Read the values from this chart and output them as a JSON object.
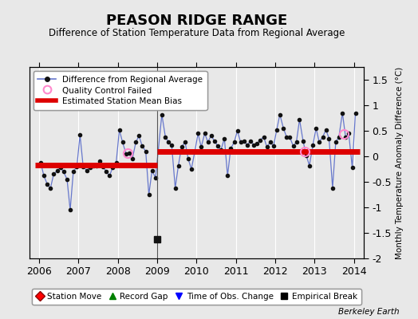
{
  "title": "PEASON RIDGE RANGE",
  "subtitle": "Difference of Station Temperature Data from Regional Average",
  "ylabel_right": "Monthly Temperature Anomaly Difference (°C)",
  "credit": "Berkeley Earth",
  "xlim": [
    2005.75,
    2014.25
  ],
  "ylim": [
    -2.0,
    1.75
  ],
  "yticks": [
    -2.0,
    -1.5,
    -1.0,
    -0.5,
    0.0,
    0.5,
    1.0,
    1.5
  ],
  "xticks": [
    2006,
    2007,
    2008,
    2009,
    2010,
    2011,
    2012,
    2013,
    2014
  ],
  "background_color": "#e8e8e8",
  "plot_bg_color": "#e8e8e8",
  "grid_color": "#ffffff",
  "line_color": "#6677cc",
  "marker_color": "#111111",
  "bias_color": "#dd0000",
  "qc_color": "#ff88cc",
  "break_marker_y": -1.62,
  "break_marker_x": 2009.0,
  "segment1_x_start": 2005.9,
  "segment1_x_end": 2009.0,
  "segment1_bias": -0.165,
  "segment2_x_start": 2009.0,
  "segment2_x_end": 2014.15,
  "segment2_bias": 0.09,
  "qc_points": [
    [
      2008.25,
      0.07
    ],
    [
      2012.75,
      0.09
    ],
    [
      2013.75,
      0.44
    ]
  ],
  "vline_x": 2009.0,
  "data_x": [
    2006.04,
    2006.12,
    2006.21,
    2006.29,
    2006.37,
    2006.46,
    2006.54,
    2006.62,
    2006.71,
    2006.79,
    2006.87,
    2006.96,
    2007.04,
    2007.12,
    2007.21,
    2007.29,
    2007.37,
    2007.46,
    2007.54,
    2007.62,
    2007.71,
    2007.79,
    2007.87,
    2007.96,
    2008.04,
    2008.12,
    2008.21,
    2008.29,
    2008.37,
    2008.46,
    2008.54,
    2008.62,
    2008.71,
    2008.79,
    2008.87,
    2008.96,
    2009.12,
    2009.21,
    2009.29,
    2009.37,
    2009.46,
    2009.54,
    2009.62,
    2009.71,
    2009.79,
    2009.87,
    2009.96,
    2010.04,
    2010.12,
    2010.21,
    2010.29,
    2010.37,
    2010.46,
    2010.54,
    2010.62,
    2010.71,
    2010.79,
    2010.87,
    2010.96,
    2011.04,
    2011.12,
    2011.21,
    2011.29,
    2011.37,
    2011.46,
    2011.54,
    2011.62,
    2011.71,
    2011.79,
    2011.87,
    2011.96,
    2012.04,
    2012.12,
    2012.21,
    2012.29,
    2012.37,
    2012.46,
    2012.54,
    2012.62,
    2012.71,
    2012.79,
    2012.87,
    2012.96,
    2013.04,
    2013.12,
    2013.21,
    2013.29,
    2013.37,
    2013.46,
    2013.54,
    2013.62,
    2013.71,
    2013.79,
    2013.87,
    2013.96,
    2014.04
  ],
  "data_y": [
    -0.12,
    -0.38,
    -0.55,
    -0.62,
    -0.35,
    -0.28,
    -0.22,
    -0.3,
    -0.45,
    -1.05,
    -0.3,
    -0.2,
    0.42,
    -0.2,
    -0.28,
    -0.22,
    -0.18,
    -0.18,
    -0.1,
    -0.2,
    -0.3,
    -0.38,
    -0.22,
    -0.12,
    0.52,
    0.28,
    0.05,
    0.07,
    -0.05,
    0.28,
    0.4,
    0.2,
    0.1,
    -0.75,
    -0.28,
    -0.42,
    0.82,
    0.38,
    0.28,
    0.22,
    -0.62,
    -0.18,
    0.18,
    0.28,
    -0.05,
    -0.25,
    0.1,
    0.45,
    0.18,
    0.45,
    0.28,
    0.4,
    0.3,
    0.2,
    0.12,
    0.35,
    -0.38,
    0.15,
    0.28,
    0.5,
    0.28,
    0.3,
    0.22,
    0.3,
    0.22,
    0.25,
    0.32,
    0.38,
    0.18,
    0.28,
    0.2,
    0.52,
    0.82,
    0.55,
    0.38,
    0.38,
    0.2,
    0.28,
    0.72,
    0.3,
    0.02,
    -0.18,
    0.22,
    0.55,
    0.28,
    0.38,
    0.52,
    0.35,
    -0.62,
    0.28,
    0.38,
    0.85,
    0.38,
    0.45,
    -0.22,
    0.85
  ]
}
